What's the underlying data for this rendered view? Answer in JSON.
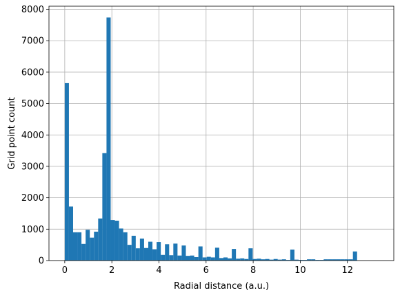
{
  "chart_data": {
    "type": "bar",
    "histogram": true,
    "xlabel": "Radial distance (a.u.)",
    "ylabel": "Grid point count",
    "xlim": [
      -0.67,
      13.97
    ],
    "ylim": [
      0,
      8100
    ],
    "xticks": [
      0,
      2,
      4,
      6,
      8,
      10,
      12
    ],
    "yticks": [
      0,
      1000,
      2000,
      3000,
      4000,
      5000,
      6000,
      7000,
      8000
    ],
    "grid": true,
    "bar_color": "#1f77b4",
    "bins": {
      "start": 0.0,
      "width": 0.1773,
      "values": [
        5650,
        1720,
        900,
        900,
        530,
        980,
        730,
        920,
        1340,
        3420,
        7740,
        1290,
        1270,
        1020,
        900,
        500,
        790,
        390,
        700,
        400,
        600,
        360,
        590,
        180,
        520,
        170,
        540,
        160,
        480,
        150,
        160,
        110,
        450,
        100,
        120,
        100,
        410,
        80,
        100,
        70,
        370,
        60,
        70,
        50,
        390,
        50,
        60,
        40,
        50,
        30,
        50,
        30,
        40,
        20,
        350,
        30,
        20,
        20,
        40,
        40,
        20,
        20,
        40,
        40,
        40,
        40,
        40,
        40,
        40,
        290
      ]
    }
  }
}
